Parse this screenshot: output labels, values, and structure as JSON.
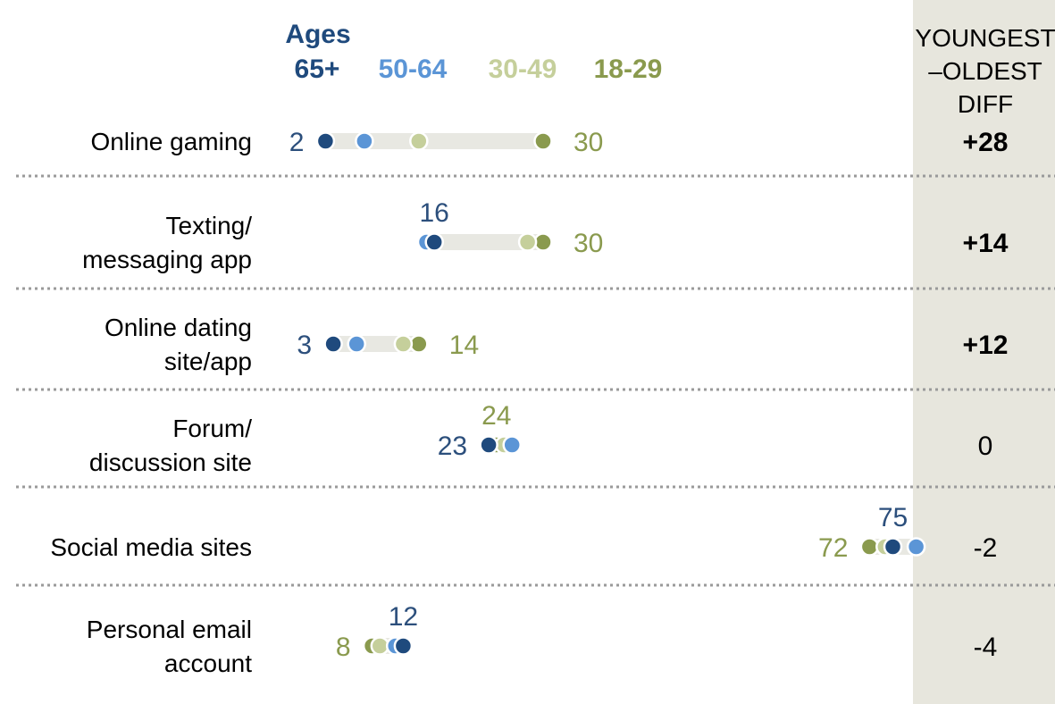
{
  "chart_data": {
    "type": "dot",
    "legend": {
      "title": "Ages",
      "placement": "top",
      "entries": [
        {
          "label": "65+",
          "color": "#1f4a7d"
        },
        {
          "label": "50-64",
          "color": "#5b95d6"
        },
        {
          "label": "30-49",
          "color": "#c5cf9b"
        },
        {
          "label": "18-29",
          "color": "#8a9a4e"
        }
      ]
    },
    "series_order": [
      "65+",
      "50-64",
      "30-49",
      "18-29"
    ],
    "categories": [
      {
        "lines": [
          "Online gaming"
        ],
        "values": [
          2,
          7,
          14,
          30
        ],
        "labels": [
          {
            "text": "2",
            "series": 0,
            "pos": "left"
          },
          {
            "text": "30",
            "series": 3,
            "pos": "right"
          }
        ],
        "diff": "+28",
        "diff_bold": true
      },
      {
        "lines": [
          "Texting/",
          "messaging app"
        ],
        "values": [
          16,
          15,
          28,
          30
        ],
        "labels": [
          {
            "text": "16",
            "series": 0,
            "pos": "above"
          },
          {
            "text": "30",
            "series": 3,
            "pos": "right"
          }
        ],
        "diff": "+14",
        "diff_bold": true
      },
      {
        "lines": [
          "Online dating",
          "site/app"
        ],
        "values": [
          3,
          6,
          12,
          14
        ],
        "labels": [
          {
            "text": "3",
            "series": 0,
            "pos": "left"
          },
          {
            "text": "14",
            "series": 3,
            "pos": "right"
          }
        ],
        "diff": "+12",
        "diff_bold": true
      },
      {
        "lines": [
          "Forum/",
          "discussion site"
        ],
        "values": [
          23,
          26,
          25,
          24
        ],
        "labels": [
          {
            "text": "24",
            "series": 3,
            "pos": "above"
          },
          {
            "text": "23",
            "series": 0,
            "pos": "left"
          }
        ],
        "diff": "0",
        "diff_bold": false
      },
      {
        "lines": [
          "Social media sites"
        ],
        "values": [
          75,
          78,
          74,
          72
        ],
        "labels": [
          {
            "text": "75",
            "series": 0,
            "pos": "above"
          },
          {
            "text": "72",
            "series": 3,
            "pos": "left"
          }
        ],
        "diff": "-2",
        "diff_bold": false
      },
      {
        "lines": [
          "Personal email",
          "account"
        ],
        "values": [
          12,
          11,
          9,
          8
        ],
        "labels": [
          {
            "text": "12",
            "series": 0,
            "pos": "above"
          },
          {
            "text": "8",
            "series": 3,
            "pos": "left"
          }
        ],
        "diff": "-4",
        "diff_bold": false
      }
    ],
    "diff_header": [
      "YOUNGEST",
      "–OLDEST",
      "DIFF"
    ],
    "xlim": [
      0,
      80
    ],
    "grid": false,
    "range_bar_color": "#e8e8e2",
    "diff_column_color": "#e7e6dd",
    "separator_color": "#9a9a9a"
  }
}
